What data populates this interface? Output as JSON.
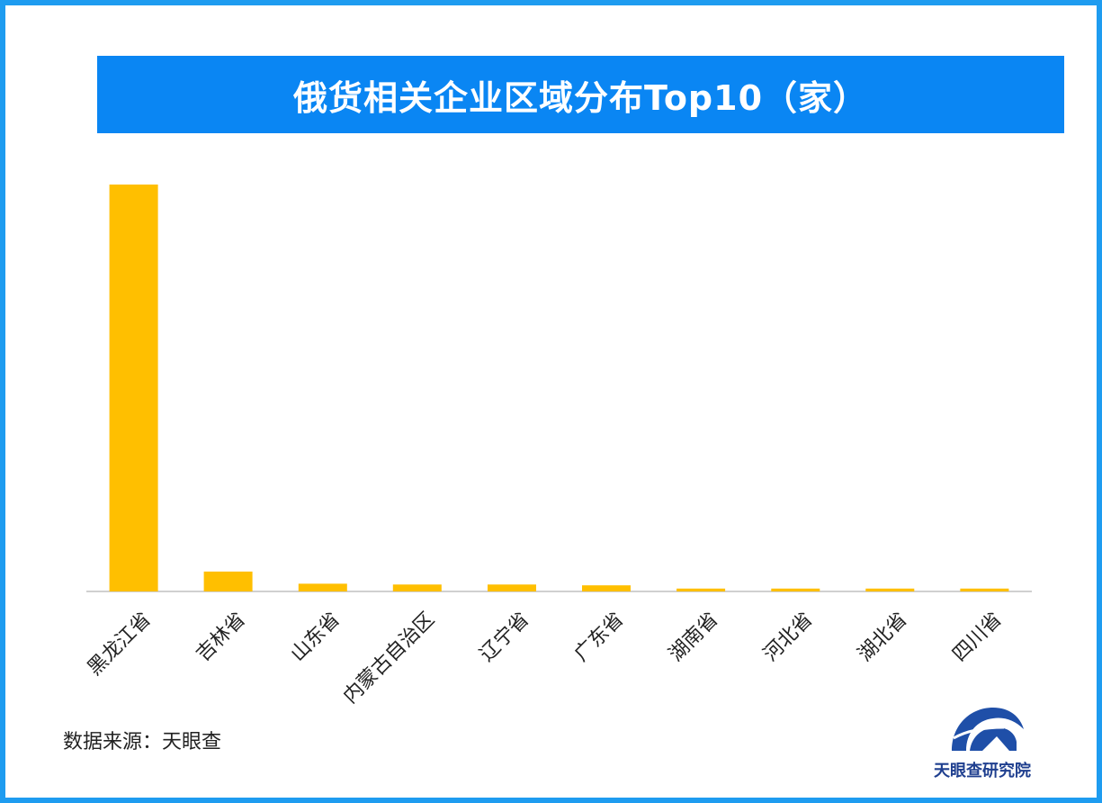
{
  "title": "俄货相关企业区域分布Top10（家）",
  "source": "数据来源：天眼查",
  "logo_text": "天眼查研究院",
  "colors": {
    "frame": "#1e9cf0",
    "title_bg": "#0a86f3",
    "bar": "#ffbf00",
    "axis": "#d0d0d0",
    "logo": "#1f4fa8"
  },
  "chart_data": {
    "type": "bar",
    "title": "俄货相关企业区域分布Top10（家）",
    "categories": [
      "黑龙江省",
      "吉林省",
      "山东省",
      "内蒙古自治区",
      "辽宁省",
      "广东省",
      "湖南省",
      "河北省",
      "湖北省",
      "四川省"
    ],
    "values": [
      5000,
      245,
      95,
      85,
      85,
      75,
      35,
      35,
      35,
      35
    ],
    "xlabel": "",
    "ylabel": "",
    "ylim": [
      0,
      5000
    ],
    "grid": false,
    "legend": "none"
  }
}
